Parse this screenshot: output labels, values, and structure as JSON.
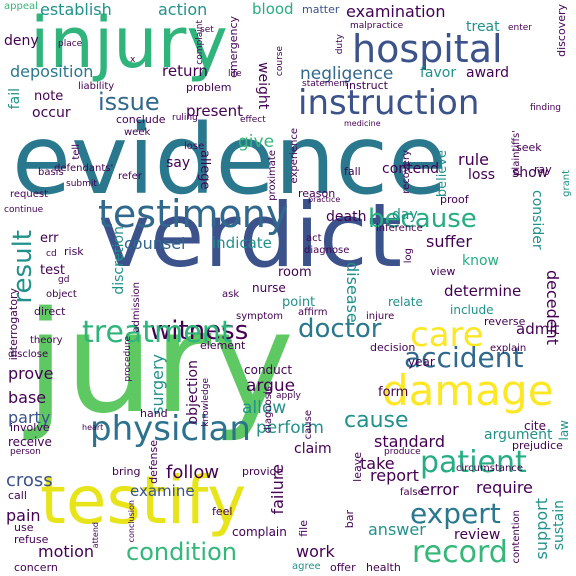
{
  "title": "",
  "palette": {
    "dark_purple": "#440154",
    "indigo": "#3b528b",
    "teal": "#21918c",
    "green": "#5ec962",
    "yellow": "#fde725"
  },
  "words": {
    "evidence": "evidence",
    "verdict": "verdict",
    "jury": "jury",
    "injury": "injury",
    "testify": "testify",
    "hospital": "hospital",
    "testimony": "testimony",
    "instruction": "instruction",
    "damage": "damage",
    "physician": "physician",
    "witness": "witness",
    "doctor": "doctor",
    "care": "care",
    "patient": "patient",
    "accident": "accident",
    "record": "record",
    "condition": "condition",
    "expert": "expert",
    "cause": "cause",
    "treatment": "treatment",
    "result": "result",
    "because": "because",
    "issue": "issue",
    "negligence": "negligence",
    "deposition": "deposition",
    "establish": "establish",
    "action": "action",
    "blood": "blood",
    "matter": "matter",
    "examination": "examination",
    "treat": "treat",
    "appeal": "appeal",
    "deny": "deny",
    "fail": "fail",
    "note": "note",
    "occur": "occur",
    "return": "return",
    "weight": "weight",
    "favor": "favor",
    "award": "award",
    "present": "present",
    "give": "give",
    "say": "say",
    "allege": "allege",
    "rule": "rule",
    "believe": "believe",
    "contend": "contend",
    "loss": "loss",
    "show": "show",
    "death": "death",
    "day": "day",
    "counsel": "counsel",
    "indicate": "indicate",
    "suffer": "suffer",
    "consider": "consider",
    "know": "know",
    "decedent": "decedent",
    "determine": "determine",
    "admit": "admit",
    "discretion": "discretion",
    "surgery": "surgery",
    "objection": "objection",
    "argue": "argue",
    "allow": "allow",
    "perform": "perform",
    "claim": "claim",
    "follow": "follow",
    "examine": "examine",
    "cross": "cross",
    "pain": "pain",
    "motion": "motion",
    "work": "work",
    "answer": "answer",
    "review": "review",
    "require": "require",
    "error": "error",
    "report": "report",
    "take": "take",
    "standard": "standard",
    "argument": "argument",
    "failure": "failure",
    "disease": "disease",
    "prove": "prove",
    "base": "base",
    "party": "party",
    "support": "support",
    "sustain": "sustain",
    "err": "err",
    "test": "test",
    "risk": "risk",
    "room": "room",
    "nurse": "nurse",
    "point": "point",
    "relate": "relate",
    "include": "include",
    "form": "form",
    "year": "year",
    "conduct": "conduct",
    "element": "element",
    "decision": "decision",
    "cite": "cite",
    "law": "law",
    "prejudice": "prejudice",
    "provide": "provide",
    "complain": "complain",
    "file": "file",
    "bar": "bar",
    "health": "health",
    "offer": "offer",
    "agree": "agree",
    "concern": "concern",
    "refuse": "refuse",
    "use": "use",
    "call": "call",
    "receive": "receive",
    "involve": "involve",
    "disclose": "disclose",
    "hand": "hand",
    "defense": "defense",
    "bring": "bring",
    "feel": "feel",
    "leave": "leave",
    "produce": "produce",
    "circumstance": "circumstance",
    "false": "false",
    "contention": "contention",
    "explain": "explain",
    "reverse": "reverse",
    "view": "view",
    "log": "log",
    "inference": "inference",
    "proof": "proof",
    "ray": "ray",
    "grant": "grant",
    "seek": "seek",
    "plaintiffs": "plaintiffs'",
    "recovery": "recovery",
    "experience": "experience",
    "reason": "reason",
    "practice": "practice",
    "fall": "fall",
    "proximate": "proximate",
    "symptom": "symptom",
    "diagnose": "diagnose",
    "act": "act",
    "ask": "ask",
    "affirm": "affirm",
    "injure": "injure",
    "admission": "admission",
    "object": "object",
    "interrogatory": "interrogatory",
    "direct": "direct",
    "theory": "theory",
    "procedure": "procedure",
    "knowledge": "knowledge",
    "apply": "apply",
    "diagnosis": "diagnosis",
    "cause_small": "cause",
    "defendants": "defendants'",
    "request": "request",
    "continue": "continue",
    "basis": "basis",
    "tell": "tell",
    "submit": "submit",
    "refer": "refer",
    "lose": "lose",
    "week": "week",
    "liability": "liability",
    "problem": "problem",
    "conclude": "conclude",
    "ruling": "ruling",
    "effect": "effect",
    "complaint": "complaint",
    "life": "life",
    "emergency": "emergency",
    "set": "set",
    "place": "place",
    "x": "x",
    "course": "course",
    "statement": "statement",
    "duty": "duty",
    "malpractice": "malpractice",
    "enter": "enter",
    "discovery": "discovery",
    "finding": "finding",
    "medicine": "medicine",
    "instruct": "instruct",
    "cd": "cd",
    "gd": "gd",
    "person": "person",
    "heart": "heart",
    "attend": "attend",
    "conclusion": "conclusion"
  }
}
